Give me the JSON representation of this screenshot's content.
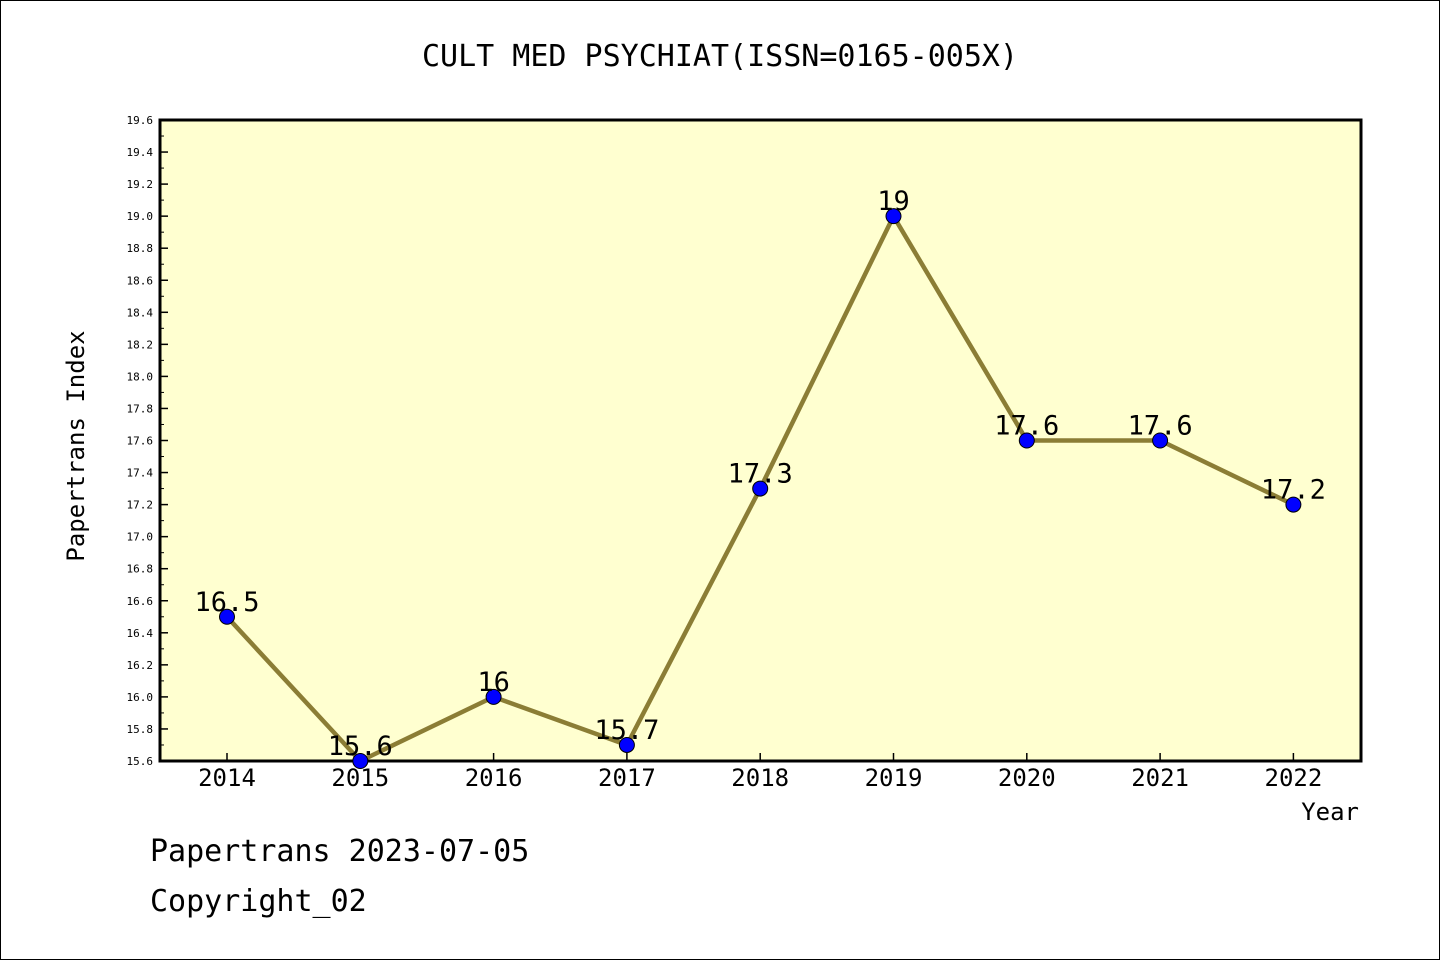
{
  "chart_data": {
    "type": "line",
    "title": "CULT MED PSYCHIAT(ISSN=0165-005X)",
    "xlabel": "Year",
    "ylabel": "Papertrans Index",
    "categories": [
      "2014",
      "2015",
      "2016",
      "2017",
      "2018",
      "2019",
      "2020",
      "2021",
      "2022"
    ],
    "values": [
      16.5,
      15.6,
      16,
      15.7,
      17.3,
      19,
      17.6,
      17.6,
      17.2
    ],
    "data_labels": [
      "16.5",
      "15.6",
      "16",
      "15.7",
      "17.3",
      "19",
      "17.6",
      "17.6",
      "17.2"
    ],
    "ylim": [
      15.6,
      19.6
    ],
    "y_ticks": [
      "15.6",
      "15.8",
      "16.0",
      "16.2",
      "16.4",
      "16.6",
      "16.8",
      "17.0",
      "17.2",
      "17.4",
      "17.6",
      "17.8",
      "18.0",
      "18.2",
      "18.4",
      "18.6",
      "18.8",
      "19.0",
      "19.2",
      "19.4",
      "19.6"
    ],
    "grid": false,
    "colors": {
      "plot_background": "#ffffd0",
      "line": "#8b7d35",
      "marker": "#0000ff"
    }
  },
  "footer": {
    "line1": "Papertrans 2023-07-05",
    "line2": "Copyright_02"
  }
}
